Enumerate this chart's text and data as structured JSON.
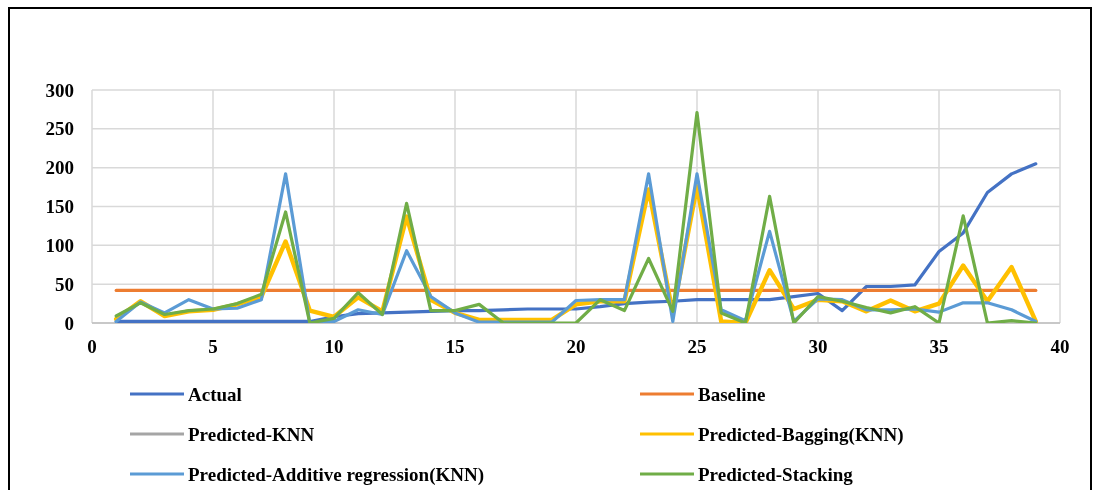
{
  "chart_data": {
    "type": "line",
    "x": [
      1,
      2,
      3,
      4,
      5,
      6,
      7,
      8,
      9,
      10,
      11,
      12,
      13,
      14,
      15,
      16,
      17,
      18,
      19,
      20,
      21,
      22,
      23,
      24,
      25,
      26,
      27,
      28,
      29,
      30,
      31,
      32,
      33,
      34,
      35,
      36,
      37,
      38,
      39
    ],
    "series": [
      {
        "name": "Actual",
        "color": "#4472c4",
        "values": [
          2,
          2,
          2,
          2,
          2,
          2,
          2,
          2,
          2,
          8,
          12,
          13,
          14,
          15,
          16,
          16,
          17,
          18,
          18,
          18,
          21,
          25,
          27,
          28,
          30,
          30,
          30,
          30,
          34,
          38,
          16,
          47,
          47,
          49,
          92,
          116,
          168,
          192,
          205
        ]
      },
      {
        "name": "Baseline",
        "color": "#ed7d31",
        "values": [
          42,
          42,
          42,
          42,
          42,
          42,
          42,
          42,
          42,
          42,
          42,
          42,
          42,
          42,
          42,
          42,
          42,
          42,
          42,
          42,
          42,
          42,
          42,
          42,
          42,
          42,
          42,
          42,
          42,
          42,
          42,
          42,
          42,
          42,
          42,
          42,
          42,
          42,
          42
        ]
      },
      {
        "name": "Predicted-KNN",
        "color": "#a5a5a5",
        "values": [
          null,
          null,
          null,
          null,
          null,
          null,
          null,
          null,
          null,
          null,
          null,
          null,
          null,
          null,
          null,
          null,
          null,
          null,
          null,
          null,
          null,
          null,
          null,
          null,
          null,
          null,
          null,
          null,
          null,
          null,
          null,
          null,
          null,
          null,
          null,
          null,
          null,
          null,
          null
        ]
      },
      {
        "name": "Predicted-Bagging(KNN)",
        "color": "#ffc000",
        "values": [
          5,
          28,
          9,
          15,
          17,
          24,
          34,
          105,
          16,
          8,
          33,
          15,
          137,
          30,
          13,
          4,
          4,
          4,
          4,
          24,
          28,
          28,
          172,
          13,
          176,
          2,
          0,
          68,
          18,
          30,
          28,
          15,
          29,
          15,
          25,
          74,
          28,
          72,
          2
        ]
      },
      {
        "name": "Predicted-Additive regression(KNN)",
        "color": "#5b9bd5",
        "values": [
          2,
          27,
          13,
          30,
          18,
          19,
          30,
          192,
          0,
          2,
          17,
          11,
          93,
          34,
          13,
          1,
          1,
          1,
          1,
          29,
          30,
          30,
          192,
          2,
          192,
          17,
          3,
          118,
          2,
          31,
          30,
          17,
          17,
          18,
          14,
          26,
          26,
          17,
          2
        ]
      },
      {
        "name": "Predicted-Stacking",
        "color": "#70ad47",
        "values": [
          9,
          26,
          11,
          16,
          18,
          25,
          37,
          143,
          0,
          6,
          39,
          11,
          154,
          16,
          16,
          24,
          0,
          0,
          0,
          0,
          30,
          16,
          83,
          15,
          271,
          13,
          0,
          163,
          0,
          34,
          28,
          20,
          13,
          21,
          0,
          138,
          0,
          3,
          0
        ]
      }
    ],
    "xlim": [
      0,
      40
    ],
    "xticks": [
      0,
      5,
      10,
      15,
      20,
      25,
      30,
      35,
      40
    ],
    "ylim": [
      0,
      300
    ],
    "yticks": [
      0,
      50,
      100,
      150,
      200,
      250,
      300
    ],
    "grid": true,
    "legend": "bottom",
    "marker": "none",
    "line_style": "solid"
  }
}
